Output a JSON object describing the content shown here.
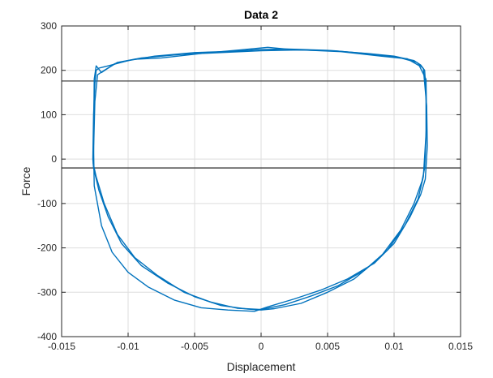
{
  "chart_data": {
    "type": "line",
    "title": "Data 2",
    "xlabel": "Displacement",
    "ylabel": "Force",
    "xlim": [
      -0.015,
      0.015
    ],
    "ylim": [
      -400,
      300
    ],
    "xticks": [
      -0.015,
      -0.01,
      -0.005,
      0,
      0.005,
      0.01,
      0.015
    ],
    "xtick_labels": [
      "-0.015",
      "-0.01",
      "-0.005",
      "0",
      "0.005",
      "0.01",
      "0.015"
    ],
    "yticks": [
      -400,
      -300,
      -200,
      -100,
      0,
      100,
      200,
      300
    ],
    "ytick_labels": [
      "-400",
      "-300",
      "-200",
      "-100",
      "0",
      "100",
      "200",
      "300"
    ],
    "grid": true,
    "legend": "none",
    "colors": {
      "series": "#0072BD",
      "reference": "#404040",
      "grid": "#dedede",
      "axes": "#262626"
    },
    "reference_lines": [
      {
        "orientation": "horizontal",
        "y": 176
      },
      {
        "orientation": "horizontal",
        "y": -20
      }
    ],
    "series": [
      {
        "x": [
          -0.01265,
          -0.0126,
          -0.0125,
          -0.0124,
          -0.0122,
          -0.0115,
          -0.01,
          -0.008,
          -0.005,
          -0.002,
          0.0,
          0.002,
          0.005,
          0.008,
          0.01,
          0.0115,
          0.012,
          0.0123,
          0.0124,
          0.0124,
          0.0123,
          0.0121,
          0.0115,
          0.0105,
          0.009,
          0.007,
          0.005,
          0.003,
          0.001,
          0.0,
          -0.001,
          -0.003,
          -0.005,
          -0.007,
          -0.009,
          -0.0105,
          -0.0115,
          -0.0122,
          -0.0126,
          -0.01265
        ],
        "y": [
          0,
          100,
          170,
          200,
          205,
          210,
          222,
          232,
          240,
          243,
          247,
          248,
          245,
          238,
          232,
          222,
          212,
          200,
          150,
          50,
          -20,
          -50,
          -100,
          -160,
          -220,
          -270,
          -300,
          -325,
          -337,
          -340,
          -338,
          -330,
          -310,
          -280,
          -240,
          -190,
          -130,
          -70,
          -20,
          0
        ]
      },
      {
        "x": [
          -0.0126,
          -0.01255,
          -0.0124,
          -0.012,
          -0.011,
          -0.0095,
          -0.0075,
          -0.0045,
          -0.0015,
          0.0005,
          0.0025,
          0.0055,
          0.0085,
          0.0105,
          0.0117,
          0.0122,
          0.01245,
          0.0125,
          0.01235,
          0.012,
          0.0112,
          0.01,
          0.0085,
          0.0065,
          0.0045,
          0.0025,
          0.0005,
          -0.0005,
          -0.0025,
          -0.0045,
          -0.0065,
          -0.0085,
          -0.01,
          -0.0112,
          -0.012,
          -0.01255,
          -0.0126
        ],
        "y": [
          30,
          180,
          210,
          195,
          215,
          225,
          228,
          238,
          246,
          252,
          246,
          244,
          236,
          228,
          218,
          204,
          120,
          30,
          -45,
          -80,
          -130,
          -190,
          -235,
          -270,
          -295,
          -315,
          -333,
          -343,
          -340,
          -335,
          -318,
          -288,
          -255,
          -210,
          -150,
          -60,
          30
        ]
      },
      {
        "x": [
          -0.01262,
          -0.0125,
          -0.0123,
          -0.0118,
          -0.0108,
          -0.009,
          -0.006,
          -0.003,
          0.0,
          0.003,
          0.006,
          0.009,
          0.011,
          0.0119,
          0.0124,
          0.01245,
          0.0122,
          0.0118,
          0.0108,
          0.0095,
          0.0078,
          0.0058,
          0.0038,
          0.0018,
          0.0,
          -0.0018,
          -0.0038,
          -0.0058,
          -0.0078,
          -0.0095,
          -0.0108,
          -0.0118,
          -0.0124,
          -0.01262
        ],
        "y": [
          -10,
          130,
          190,
          200,
          218,
          228,
          236,
          240,
          244,
          246,
          242,
          232,
          226,
          210,
          180,
          80,
          -40,
          -90,
          -150,
          -205,
          -250,
          -285,
          -308,
          -328,
          -339,
          -336,
          -322,
          -300,
          -262,
          -222,
          -170,
          -100,
          -40,
          -10
        ]
      }
    ]
  }
}
